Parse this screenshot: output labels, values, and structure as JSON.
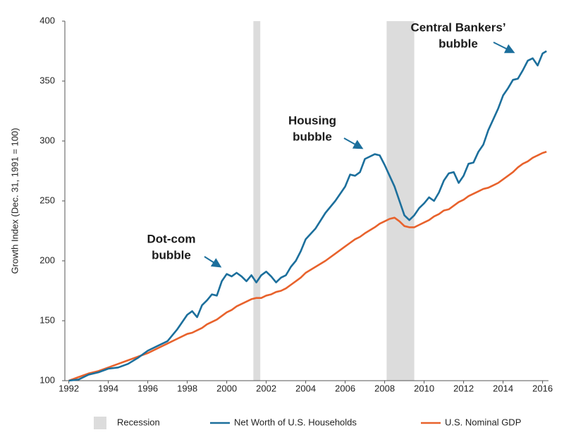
{
  "chart_data": {
    "type": "line",
    "y_label": "Growth Index (Dec. 31, 1991 = 100)",
    "xlim": [
      1991.8,
      2016.3
    ],
    "ylim": [
      100,
      400
    ],
    "xticks": [
      1992,
      1994,
      1996,
      1998,
      2000,
      2002,
      2004,
      2006,
      2008,
      2010,
      2012,
      2014,
      2016
    ],
    "yticks": [
      100,
      150,
      200,
      250,
      300,
      350,
      400
    ],
    "grid": false,
    "legend": "bottom",
    "recession": {
      "name": "Recession",
      "color": "#dcdcdc",
      "periods": [
        [
          2001.35,
          2001.7
        ],
        [
          2008.1,
          2009.5
        ]
      ]
    },
    "x": [
      1992,
      1992.5,
      1993,
      1993.5,
      1994,
      1994.5,
      1995,
      1995.5,
      1996,
      1996.5,
      1997,
      1997.5,
      1998,
      1998.25,
      1998.5,
      1998.75,
      1999,
      1999.25,
      1999.5,
      1999.75,
      2000,
      2000.25,
      2000.5,
      2000.75,
      2001,
      2001.25,
      2001.5,
      2001.75,
      2002,
      2002.25,
      2002.5,
      2002.75,
      2003,
      2003.25,
      2003.5,
      2003.75,
      2004,
      2004.5,
      2005,
      2005.5,
      2006,
      2006.25,
      2006.5,
      2006.75,
      2007,
      2007.5,
      2007.75,
      2008,
      2008.25,
      2008.5,
      2008.75,
      2009,
      2009.25,
      2009.5,
      2009.75,
      2010,
      2010.25,
      2010.5,
      2010.75,
      2011,
      2011.25,
      2011.5,
      2011.75,
      2012,
      2012.25,
      2012.5,
      2012.75,
      2013,
      2013.25,
      2013.5,
      2013.75,
      2014,
      2014.25,
      2014.5,
      2014.75,
      2015,
      2015.25,
      2015.5,
      2015.75,
      2016,
      2016.2
    ],
    "series": [
      {
        "name": "Net Worth of U.S. Households",
        "color": "#1c6f9c",
        "values": [
          100,
          101,
          105,
          107,
          110,
          111,
          114,
          119,
          125,
          129,
          133,
          143,
          155,
          158,
          153,
          163,
          167,
          172,
          171,
          183,
          189,
          187,
          190,
          187,
          183,
          188,
          182,
          188,
          191,
          187,
          182,
          186,
          188,
          195,
          200,
          208,
          218,
          227,
          240,
          250,
          262,
          272,
          271,
          274,
          285,
          289,
          288,
          280,
          271,
          262,
          250,
          238,
          234,
          238,
          244,
          248,
          253,
          250,
          257,
          267,
          273,
          274,
          265,
          271,
          281,
          282,
          291,
          297,
          309,
          318,
          327,
          338,
          344,
          351,
          352,
          359,
          367,
          369,
          363,
          373,
          375
        ]
      },
      {
        "name": "U.S. Nominal GDP",
        "color": "#e8622c",
        "values": [
          100,
          103,
          106,
          108,
          111,
          114,
          117,
          120,
          123,
          127,
          131,
          135,
          139,
          140,
          142,
          144,
          147,
          149,
          151,
          154,
          157,
          159,
          162,
          164,
          166,
          168,
          169,
          169,
          171,
          172,
          174,
          175,
          177,
          180,
          183,
          186,
          190,
          195,
          200,
          206,
          212,
          215,
          218,
          220,
          223,
          228,
          231,
          233,
          235,
          236,
          233,
          229,
          228,
          228,
          230,
          232,
          234,
          237,
          239,
          242,
          243,
          246,
          249,
          251,
          254,
          256,
          258,
          260,
          261,
          263,
          265,
          268,
          271,
          274,
          278,
          281,
          283,
          286,
          288,
          290,
          291
        ]
      }
    ],
    "annotations": [
      {
        "lines": [
          "Dot-com",
          "bubble"
        ]
      },
      {
        "lines": [
          "Housing",
          "bubble"
        ]
      },
      {
        "lines": [
          "Central Bankers’",
          "bubble"
        ]
      }
    ]
  }
}
